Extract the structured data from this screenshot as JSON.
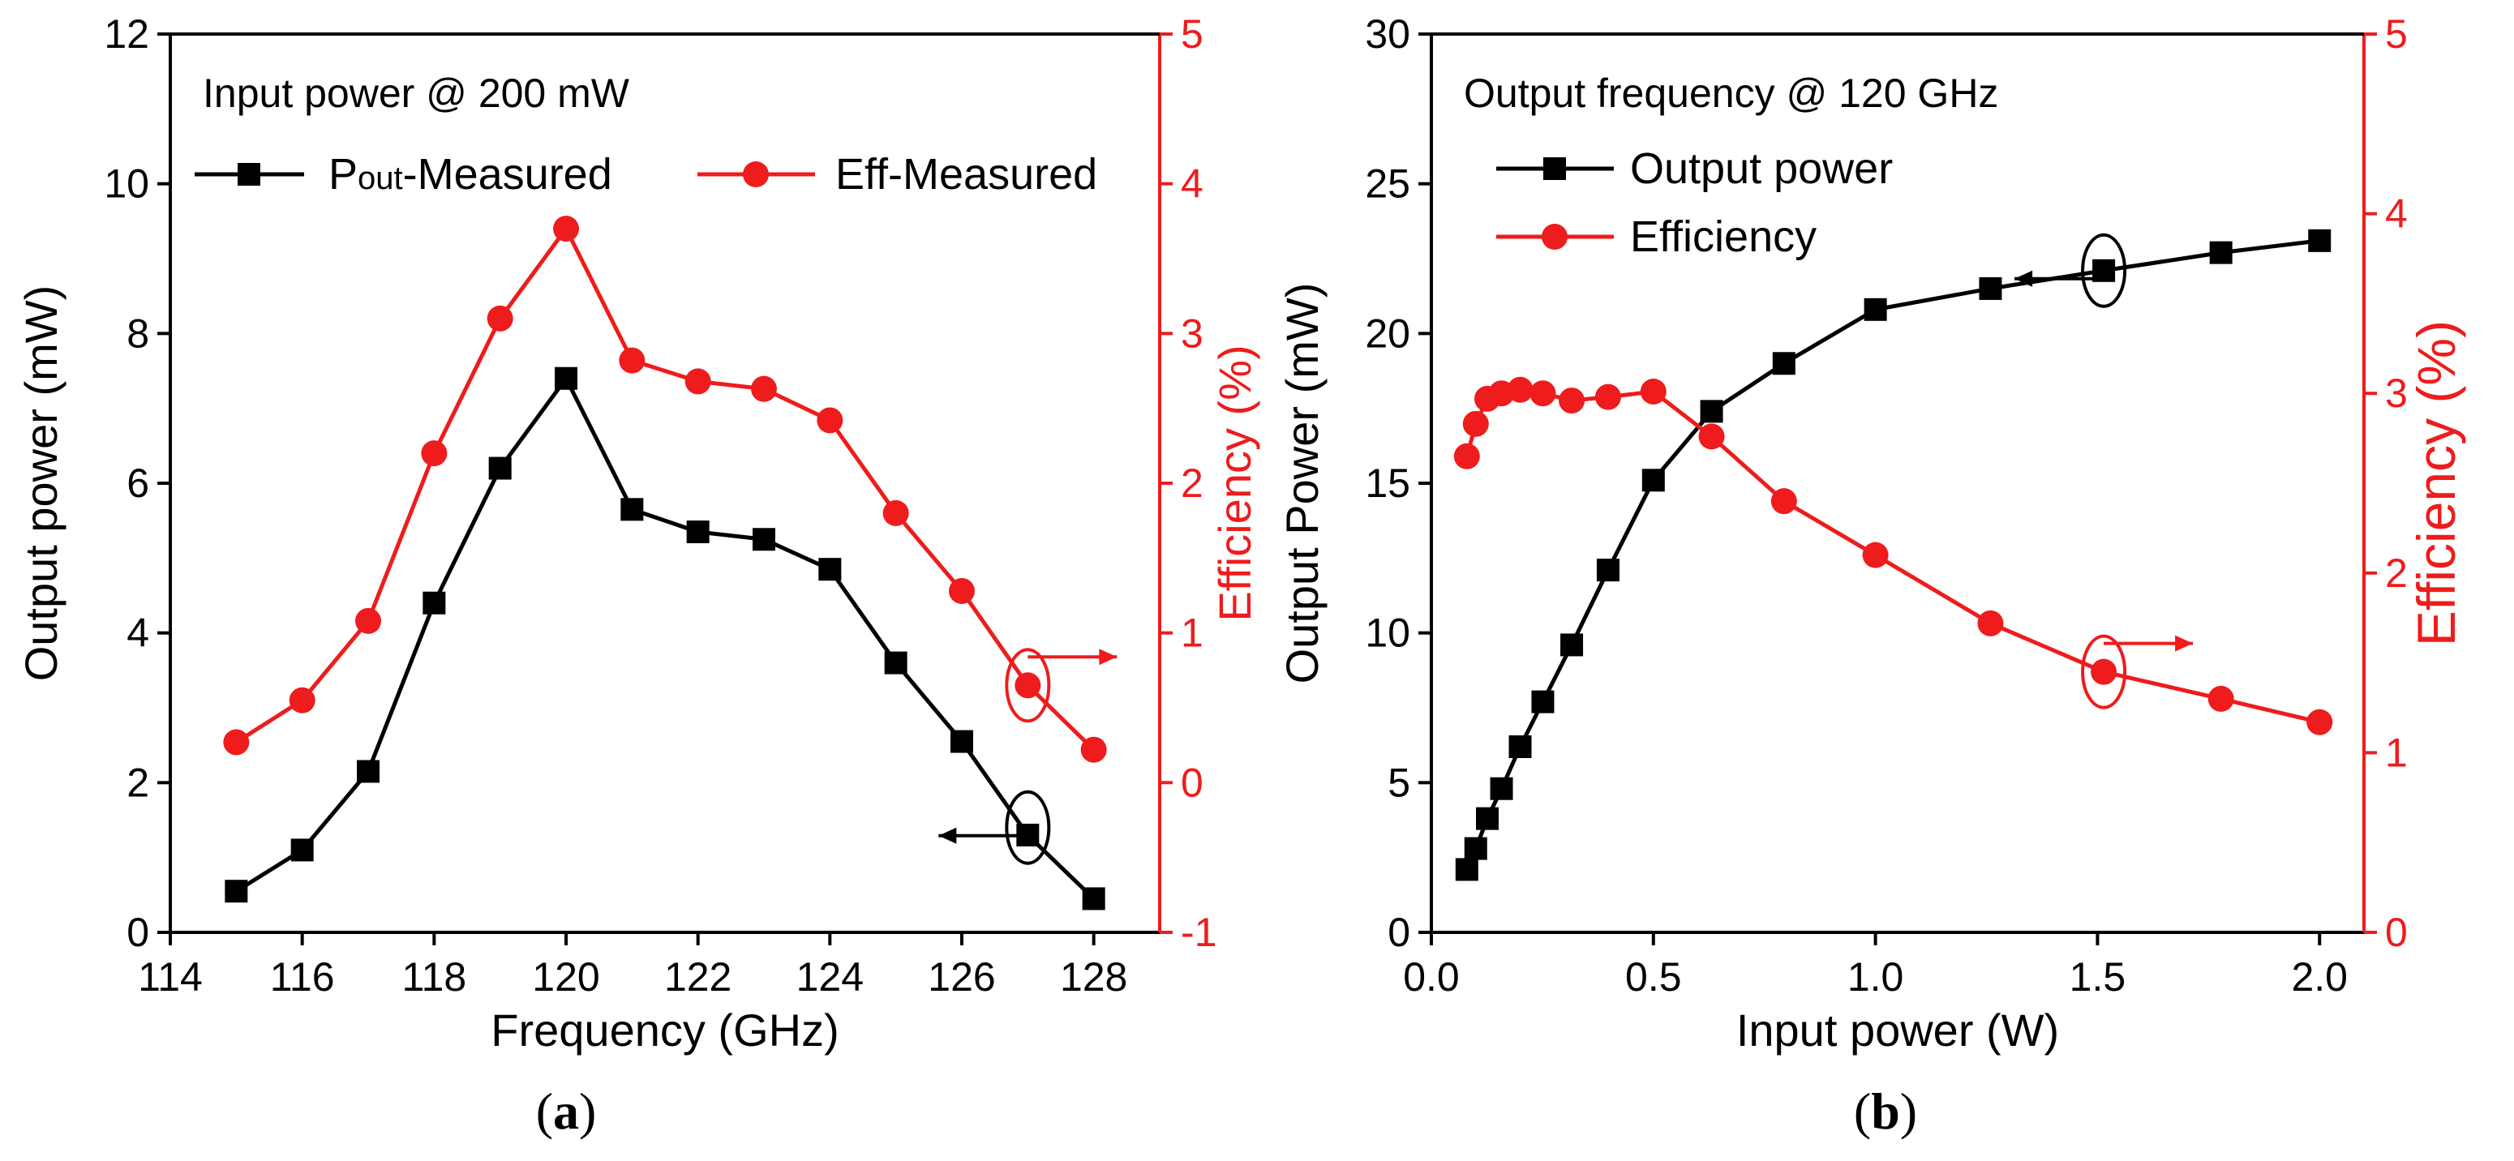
{
  "panels": {
    "a": {
      "caption_letter": "a"
    },
    "b": {
      "caption_letter": "b"
    }
  },
  "chart_data": [
    {
      "type": "line",
      "panel": "a",
      "annotation": "Input power @ 200 mW",
      "xlabel": "Frequency (GHz)",
      "ylabel_left": "Output power (mW)",
      "ylabel_right": "Efficiency (%)",
      "xlim": [
        114,
        129
      ],
      "xticks": [
        114,
        116,
        118,
        120,
        122,
        124,
        126,
        128
      ],
      "ylim_left": [
        0,
        12
      ],
      "yticks_left": [
        0,
        2,
        4,
        6,
        8,
        10,
        12
      ],
      "ylim_right": [
        -1,
        5
      ],
      "yticks_right": [
        -1,
        0,
        1,
        2,
        3,
        4,
        5
      ],
      "legend": {
        "placement": "top-left",
        "pout_sub": "out",
        "pout_base": "P",
        "pout_rest": "-Measured",
        "eff_label": "Eff-Measured"
      },
      "colors": {
        "left": "#000000",
        "right": "#ee1c1c"
      },
      "series": [
        {
          "name": "Pout-Measured",
          "axis": "left",
          "marker": "square",
          "x": [
            115,
            116,
            117,
            118,
            119,
            120,
            121,
            122,
            123,
            124,
            125,
            126,
            127,
            128
          ],
          "values": [
            0.55,
            1.1,
            2.15,
            4.4,
            6.2,
            7.4,
            5.65,
            5.35,
            5.25,
            4.85,
            3.6,
            2.55,
            1.3,
            0.45
          ]
        },
        {
          "name": "Eff-Measured",
          "axis": "right",
          "marker": "circle",
          "x": [
            115,
            116,
            117,
            118,
            119,
            120,
            121,
            122,
            123,
            124,
            125,
            126,
            127,
            128
          ],
          "values": [
            0.27,
            0.55,
            1.08,
            2.2,
            3.1,
            3.7,
            2.82,
            2.68,
            2.63,
            2.42,
            1.8,
            1.28,
            0.65,
            0.22
          ]
        }
      ]
    },
    {
      "type": "line",
      "panel": "b",
      "annotation": "Output frequency @ 120 GHz",
      "xlabel": "Input power (W)",
      "ylabel_left": "Output Power (mW)",
      "ylabel_right": "Efficiency (%)",
      "xlim": [
        0,
        2.1
      ],
      "xticks": [
        "0.0",
        "0.5",
        "1.0",
        "1.5",
        "2.0"
      ],
      "ylim_left": [
        0,
        30
      ],
      "yticks_left": [
        0,
        5,
        10,
        15,
        20,
        25,
        30
      ],
      "ylim_right": [
        0,
        5
      ],
      "yticks_right": [
        0,
        1,
        2,
        3,
        4,
        5
      ],
      "legend": {
        "placement": "top-left",
        "pout_label": "Output power",
        "eff_label": "Efficiency"
      },
      "colors": {
        "left": "#000000",
        "right": "#ee1c1c"
      },
      "series": [
        {
          "name": "Output power",
          "axis": "left",
          "marker": "square",
          "x": [
            0.08,
            0.1,
            0.126,
            0.158,
            0.2,
            0.251,
            0.316,
            0.398,
            0.5,
            0.631,
            0.794,
            1.0,
            1.259,
            1.514,
            1.778,
            2.0
          ],
          "values": [
            2.1,
            2.8,
            3.8,
            4.8,
            6.2,
            7.7,
            9.6,
            12.1,
            15.1,
            17.4,
            19.0,
            20.8,
            21.5,
            22.1,
            22.7,
            23.1
          ]
        },
        {
          "name": "Efficiency",
          "axis": "right",
          "marker": "circle",
          "x": [
            0.08,
            0.1,
            0.126,
            0.158,
            0.2,
            0.251,
            0.316,
            0.398,
            0.5,
            0.631,
            0.794,
            1.0,
            1.259,
            1.514,
            1.778,
            2.0
          ],
          "values": [
            2.65,
            2.83,
            2.97,
            3.0,
            3.02,
            3.0,
            2.96,
            2.98,
            3.01,
            2.76,
            2.4,
            2.1,
            1.72,
            1.45,
            1.3,
            1.17
          ]
        }
      ]
    }
  ]
}
